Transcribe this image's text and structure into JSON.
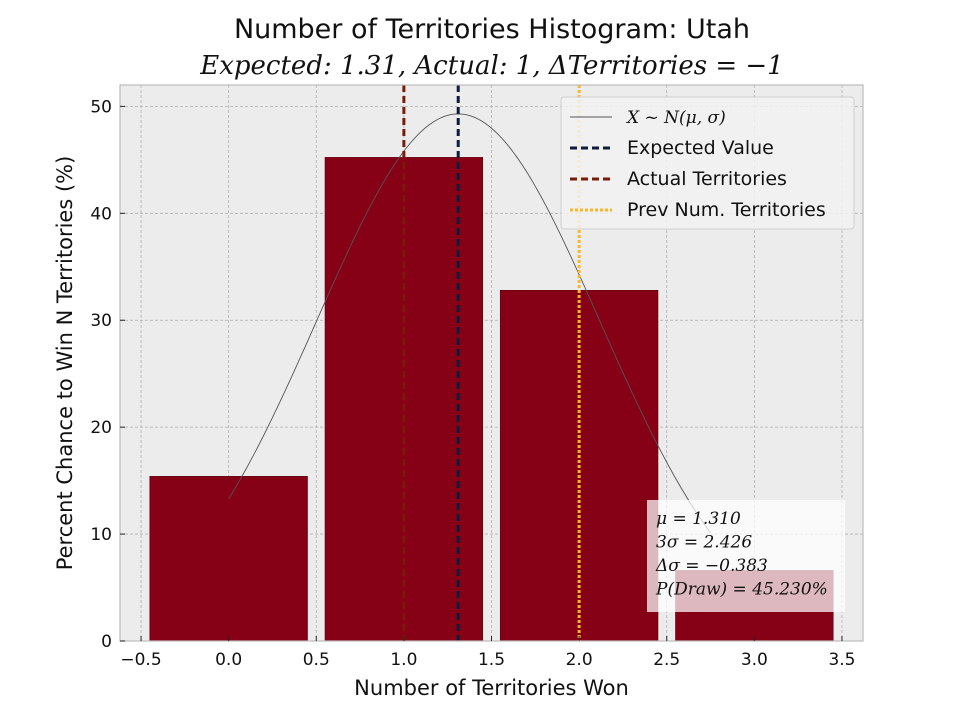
{
  "chart_data": {
    "type": "bar",
    "title": "Number of Territories Histogram: Utah",
    "subtitle": "Expected: 1.31, Actual: 1, ΔTerritories = −1",
    "xlabel": "Number of Territories Won",
    "ylabel": "Percent Chance to Win N Territories (%)",
    "xlim": [
      -0.62,
      3.62
    ],
    "ylim": [
      0,
      52
    ],
    "xticks": [
      -0.5,
      0.0,
      0.5,
      1.0,
      1.5,
      2.0,
      2.5,
      3.0,
      3.5
    ],
    "xtick_labels": [
      "−0.5",
      "0.0",
      "0.5",
      "1.0",
      "1.5",
      "2.0",
      "2.5",
      "3.0",
      "3.5"
    ],
    "yticks": [
      0,
      10,
      20,
      30,
      40,
      50
    ],
    "ytick_labels": [
      "0",
      "10",
      "20",
      "30",
      "40",
      "50"
    ],
    "grid": true,
    "categories": [
      0,
      1,
      2,
      3
    ],
    "values": [
      15.4,
      45.23,
      32.8,
      6.6
    ],
    "bar_width": 0.9,
    "bar_color": "#860016",
    "normal_curve": {
      "mu": 1.31,
      "sigma": 0.809,
      "peak": 49.3,
      "x_range": [
        0,
        2.75
      ],
      "color": "#555555"
    },
    "vlines": [
      {
        "name": "Expected Value",
        "x": 1.31,
        "color": "#0f1b3d",
        "style": "dashed"
      },
      {
        "name": "Actual Territories",
        "x": 1,
        "color": "#7a1a08",
        "style": "dashed"
      },
      {
        "name": "Prev Num. Territories",
        "x": 2,
        "color": "#fbb72a",
        "style": "dotted"
      }
    ],
    "legend": {
      "placement": "top-right",
      "entries": [
        {
          "label": "X ~ N(μ, σ)",
          "kind": "curve"
        },
        {
          "label": "Expected Value",
          "kind": "vline",
          "ref": 0
        },
        {
          "label": "Actual Territories",
          "kind": "vline",
          "ref": 1
        },
        {
          "label": "Prev Num. Territories",
          "kind": "vline",
          "ref": 2
        }
      ]
    },
    "stats_box": {
      "placement": "lower-right",
      "lines": [
        "μ = 1.310",
        "3σ = 2.426",
        "Δσ = −0.383",
        "P(Draw) = 45.230%"
      ]
    },
    "colors": {
      "axes_bg": "#ececec",
      "grid": "#b0b0b0",
      "spine": "#bcbcbc"
    }
  }
}
